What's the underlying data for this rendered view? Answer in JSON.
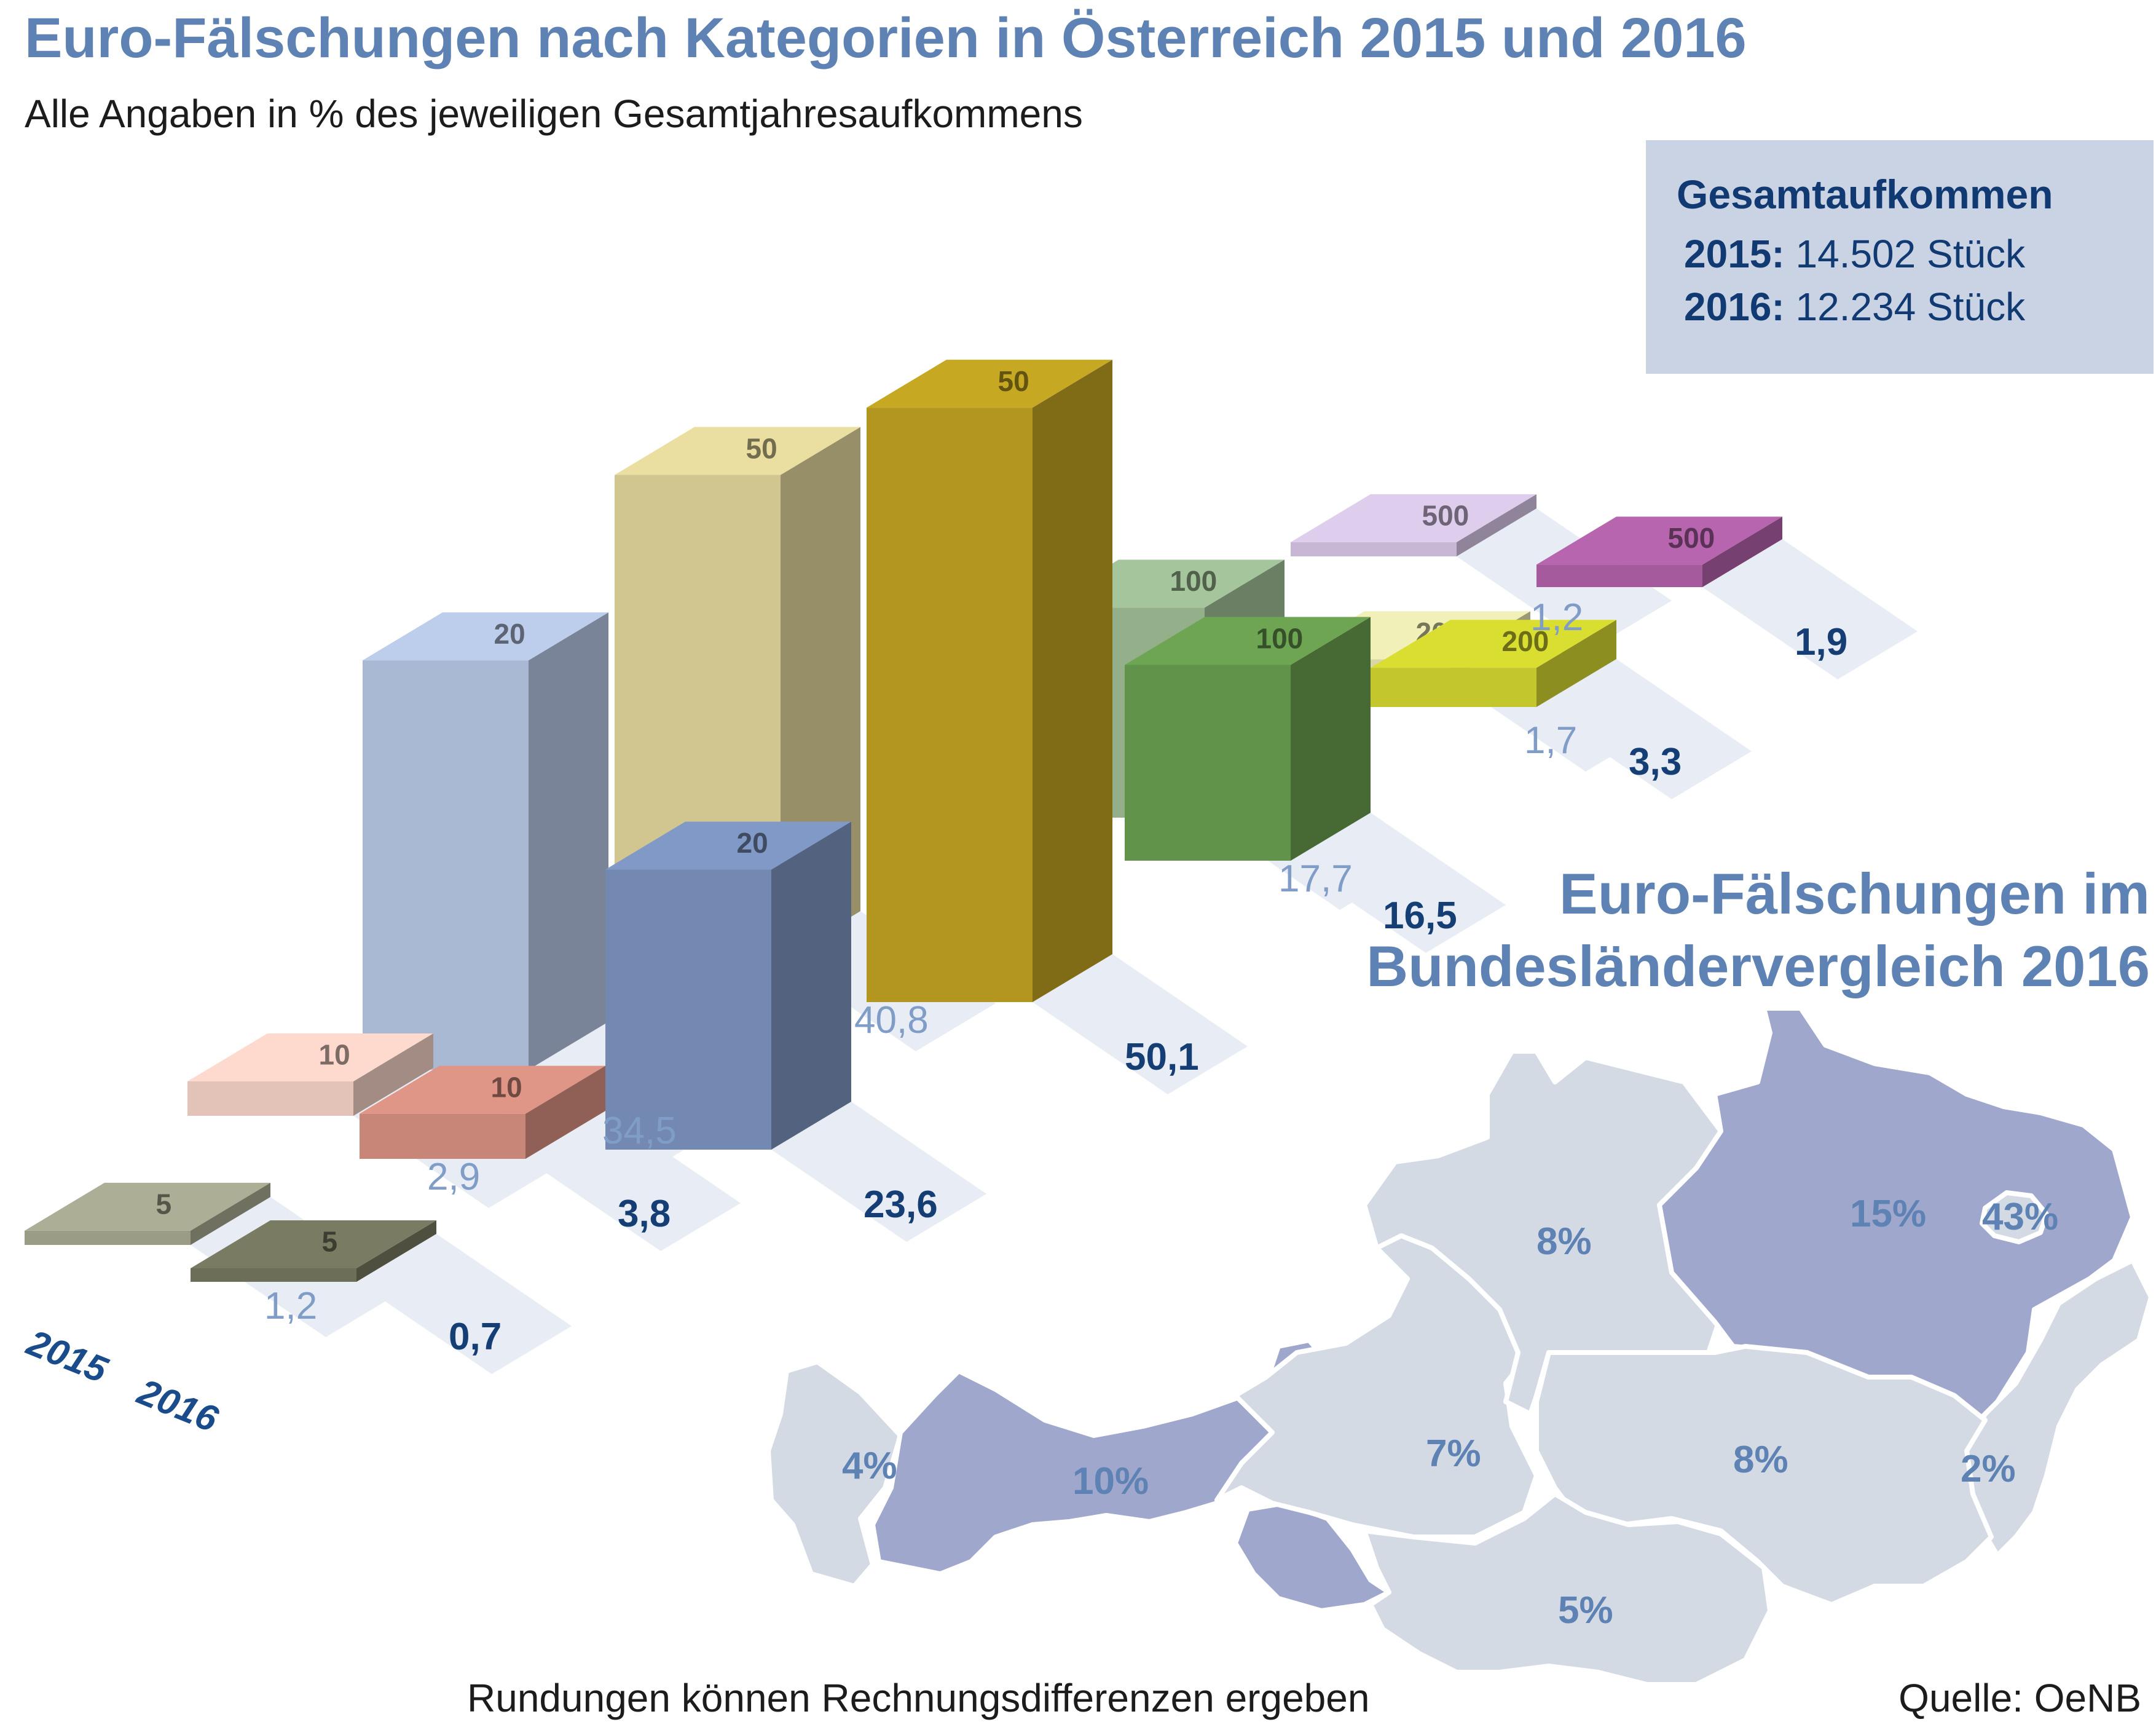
{
  "title": "Euro-Fälschungen nach Kategorien in Österreich 2015 und 2016",
  "subtitle": "Alle Angaben in % des jeweiligen Gesamtjahresaufkommens",
  "totals": {
    "heading": "Gesamtaufkommen",
    "line_2015_year": "2015:",
    "line_2015_value": "14.502 Stück",
    "line_2016_year": "2016:",
    "line_2016_value": "12.234 Stück"
  },
  "year_labels": [
    "2015",
    "2016"
  ],
  "colors": {
    "title": "#5d82b3",
    "accent_dark": "#153e75",
    "map_highlight": "#a0a7cc",
    "map_base": "#d4dae4"
  },
  "chart_data": {
    "type": "bar",
    "style": "isometric stacked banknotes",
    "categories": [
      "5",
      "10",
      "20",
      "50",
      "100",
      "200",
      "500"
    ],
    "series": [
      {
        "name": "2015",
        "values": [
          1.2,
          2.9,
          34.5,
          40.8,
          17.7,
          1.7,
          1.2
        ],
        "labels": [
          "1,2",
          "2,9",
          "34,5",
          "40,8",
          "17,7",
          "1,7",
          "1,2"
        ]
      },
      {
        "name": "2016",
        "values": [
          0.7,
          3.8,
          23.6,
          50.1,
          16.5,
          3.3,
          1.9
        ],
        "labels": [
          "0,7",
          "3,8",
          "23,6",
          "50,1",
          "16,5",
          "3,3",
          "1,9"
        ]
      }
    ],
    "note_colors": {
      "5": [
        "#9a9c85",
        "#6c6e58"
      ],
      "10": [
        "#e3c2b8",
        "#c88678"
      ],
      "20": [
        "#a9b8d3",
        "#7389b1"
      ],
      "50": [
        "#d1c690",
        "#b2961f"
      ],
      "100": [
        "#93b08b",
        "#62934a"
      ],
      "200": [
        "#d7d6a4",
        "#c3c62c"
      ],
      "500": [
        "#c7b7d4",
        "#a45a9c"
      ]
    }
  },
  "map": {
    "title_line1": "Euro-Fälschungen im",
    "title_line2": "Bundesländervergleich 2016",
    "regions": [
      {
        "name": "Vorarlberg",
        "label": "4%",
        "highlight": false
      },
      {
        "name": "Tirol",
        "label": "10%",
        "highlight": true
      },
      {
        "name": "Salzburg",
        "label": "7%",
        "highlight": false
      },
      {
        "name": "Oberösterreich",
        "label": "8%",
        "highlight": false
      },
      {
        "name": "Niederösterreich",
        "label": "15%",
        "highlight": true
      },
      {
        "name": "Wien",
        "label": "43%",
        "highlight": false
      },
      {
        "name": "Burgenland",
        "label": "2%",
        "highlight": false
      },
      {
        "name": "Steiermark",
        "label": "8%",
        "highlight": false
      },
      {
        "name": "Kärnten",
        "label": "5%",
        "highlight": false
      }
    ]
  },
  "footnote": "Rundungen können Rechnungsdifferenzen ergeben",
  "source": "Quelle: OeNB"
}
